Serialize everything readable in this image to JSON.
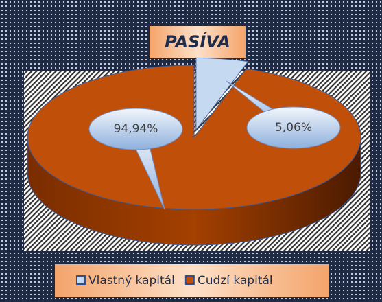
{
  "chart_data": {
    "type": "pie3d",
    "title": "PASÍVA",
    "categories": [
      "Vlastný kapitál",
      "Cudzí kapitál"
    ],
    "values": [
      5.06,
      94.94
    ],
    "value_labels": [
      "5,06%",
      "94,94%"
    ],
    "colors": [
      "#c5d9f1",
      "#c04f0a"
    ],
    "legend": "bottom"
  }
}
